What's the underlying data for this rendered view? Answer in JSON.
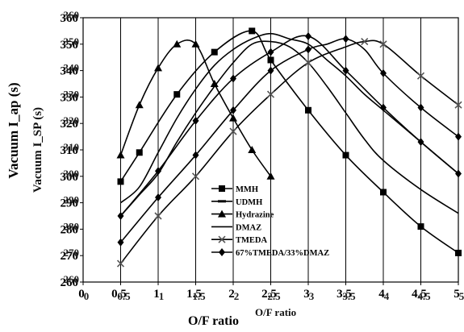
{
  "chart_data": {
    "type": "line",
    "ylabel": "Vacuum I_ap (s)",
    "ylabel_overlay": "Vacuum I_SP (s)",
    "xlabel": "O/F ratio",
    "xlabel_overlay": "O/F ratio",
    "xlim": [
      0,
      5
    ],
    "ylim": [
      260,
      360
    ],
    "x_ticks": [
      0,
      0.5,
      1,
      1.5,
      2,
      2.5,
      3,
      3.5,
      4,
      4.5,
      5
    ],
    "x_tick_labels": [
      "0",
      "0.5",
      "1",
      "1.5",
      "2",
      "2.5",
      "3",
      "3.5",
      "4",
      "4.5",
      "5"
    ],
    "x_tick_labels_overlay": [
      "0",
      "0.5",
      "1",
      "1.5",
      "2",
      "2.5",
      "3",
      "3.5",
      "4",
      "4.5",
      "5"
    ],
    "y_ticks": [
      260,
      270,
      280,
      290,
      300,
      310,
      320,
      330,
      340,
      350,
      360
    ],
    "y_tick_labels": [
      "260",
      "270",
      "280",
      "290",
      "300",
      "310",
      "320",
      "330",
      "340",
      "350",
      "360"
    ],
    "y_tick_labels_overlay": [
      "260",
      "270",
      "280",
      "290",
      "300",
      "310",
      "320",
      "330",
      "340",
      "350",
      "360"
    ],
    "grid": "vertical",
    "legend_position": "lower-center",
    "series": [
      {
        "name": "MMH",
        "marker": "square",
        "x": [
          0.5,
          0.75,
          1.25,
          1.75,
          2.25,
          2.5,
          3,
          3.5,
          4,
          4.5,
          5
        ],
        "y": [
          298,
          309,
          331,
          347,
          355,
          344,
          325,
          308,
          294,
          281,
          271
        ],
        "markers_x": [
          0.5,
          0.75,
          1.25,
          1.75,
          2.25,
          2.5,
          3,
          3.5,
          4,
          4.5,
          5
        ]
      },
      {
        "name": "UDMH",
        "marker": "dash",
        "x": [
          0.5,
          0.75,
          1,
          1.25,
          1.5,
          1.75,
          2,
          2.25,
          2.5,
          2.75,
          3,
          3.25,
          3.5,
          3.75,
          4,
          4.5,
          5
        ],
        "y": [
          290,
          296,
          309,
          322,
          333,
          342,
          348,
          352,
          354,
          352,
          350,
          344,
          338,
          331,
          325,
          313,
          301
        ],
        "markers_x": []
      },
      {
        "name": "Hydrazine",
        "marker": "triangle",
        "x": [
          0.5,
          0.75,
          1,
          1.25,
          1.5,
          1.75,
          2,
          2.25,
          2.5
        ],
        "y": [
          308,
          327,
          341,
          350,
          350,
          335,
          322,
          310,
          300
        ],
        "markers_x": [
          0.5,
          0.75,
          1,
          1.25,
          1.5,
          1.75,
          2,
          2.25,
          2.5
        ]
      },
      {
        "name": "DMAZ",
        "marker": "none",
        "x": [
          0.5,
          0.75,
          1,
          1.25,
          1.5,
          1.75,
          2,
          2.25,
          2.5,
          2.75,
          3,
          3.25,
          3.5,
          3.75,
          4,
          4.5,
          5
        ],
        "y": [
          285,
          293,
          301,
          313,
          324,
          334,
          343,
          350,
          351,
          349,
          343,
          334,
          324,
          314,
          306,
          295,
          286
        ],
        "markers_x": []
      },
      {
        "name": "TMEDA",
        "marker": "x",
        "x": [
          0.5,
          1,
          1.5,
          2,
          2.5,
          3,
          3.5,
          3.75,
          4,
          4.5,
          5
        ],
        "y": [
          267,
          285,
          300,
          317,
          331,
          343,
          349,
          351,
          350,
          338,
          327
        ],
        "markers_x": [
          0.5,
          1,
          1.5,
          2,
          2.5,
          3,
          3.75,
          4,
          4.5,
          5
        ]
      },
      {
        "name": "67%TMEDA/33%DMAZ",
        "marker": "diamond",
        "x": [
          0.5,
          1,
          1.5,
          2,
          2.5,
          3,
          3.25,
          3.5,
          3.75,
          4,
          4.5,
          5
        ],
        "y": [
          275,
          292,
          308,
          325,
          340,
          348,
          350,
          352,
          348,
          339,
          326,
          315
        ],
        "markers_x": [
          0.5,
          1,
          1.5,
          2,
          2.5,
          3,
          3.5,
          4,
          4.5,
          5
        ]
      },
      {
        "name": "",
        "marker": "diamond",
        "x": [
          0.5,
          1,
          1.5,
          2,
          2.5,
          3,
          3.5,
          4,
          4.5,
          5
        ],
        "y": [
          285,
          302,
          321,
          337,
          347,
          353,
          340,
          326,
          313,
          301
        ],
        "markers_x": [
          0.5,
          1,
          1.5,
          2,
          2.5,
          3,
          3.5,
          4,
          4.5,
          5
        ]
      }
    ]
  }
}
